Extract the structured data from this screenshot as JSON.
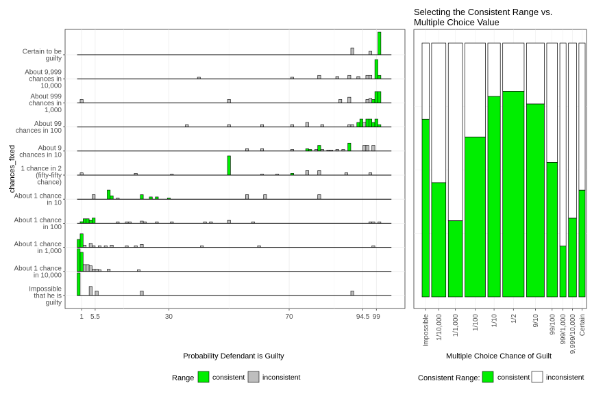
{
  "colors": {
    "consistent": "#00ee00",
    "inconsistent": "#bebebe",
    "panel_border": "#333333",
    "grid": "#ebebeb"
  },
  "chart_data": [
    {
      "type": "bar",
      "title": "",
      "xlabel": "Probability Defendant is Guilty",
      "ylabel": "chances_fixed",
      "xlim": [
        0,
        100
      ],
      "x_ticks": [
        1,
        5.5,
        30,
        70,
        94.5,
        99
      ],
      "x_tick_labels": [
        "1",
        "5.5",
        "30",
        "70",
        "94.5",
        "99"
      ],
      "categories": [
        "Impossible that he is guilty",
        "About 1 chance in 10,000",
        "About 1 chance in 1,000",
        "About 1 chance in 100",
        "About 1 chance in 10",
        "1 chance in 2 (fifty-fifty chance)",
        "About 9 chances in 10",
        "About 99 chances in 100",
        "About 999 chances in 1,000",
        "About 9,999 chances in 10,000",
        "Certain to be guilty"
      ],
      "category_label_lines": [
        [
          "Impossible",
          "that he is",
          "guilty"
        ],
        [
          "About 1 chance",
          "in 10,000"
        ],
        [
          "About 1 chance",
          "in 1,000"
        ],
        [
          "About 1 chance",
          "in 100"
        ],
        [
          "About 1 chance",
          "in 10"
        ],
        [
          "1 chance in 2",
          "(fifty-fifty",
          "chance)"
        ],
        [
          "About 9",
          "chances in 10"
        ],
        [
          "About 99",
          "chances in 100"
        ],
        [
          "About 999",
          "chances in",
          "1,000"
        ],
        [
          "About 9,999",
          "chances in",
          "10,000"
        ],
        [
          "Certain to be",
          "guilty"
        ]
      ],
      "legend": {
        "title": "Range",
        "entries": [
          "consistent",
          "inconsistent"
        ],
        "placement": "bottom"
      },
      "rows": [
        {
          "category": "Impossible that he is guilty",
          "bins": [
            {
              "x": 0,
              "h": 1.0,
              "c": "consistent"
            },
            {
              "x": 4,
              "h": 0.4,
              "c": "inconsistent"
            },
            {
              "x": 6,
              "h": 0.2,
              "c": "inconsistent"
            },
            {
              "x": 21,
              "h": 0.2,
              "c": "inconsistent"
            },
            {
              "x": 91,
              "h": 0.2,
              "c": "inconsistent"
            }
          ]
        },
        {
          "category": "About 1 chance in 10,000",
          "bins": [
            {
              "x": 0,
              "h": 1.0,
              "c": "consistent"
            },
            {
              "x": 1,
              "h": 0.85,
              "c": "consistent"
            },
            {
              "x": 2,
              "h": 0.3,
              "c": "inconsistent"
            },
            {
              "x": 3,
              "h": 0.3,
              "c": "inconsistent"
            },
            {
              "x": 4,
              "h": 0.25,
              "c": "inconsistent"
            },
            {
              "x": 5,
              "h": 0.1,
              "c": "inconsistent"
            },
            {
              "x": 6,
              "h": 0.1,
              "c": "inconsistent"
            },
            {
              "x": 7,
              "h": 0.07,
              "c": "inconsistent"
            },
            {
              "x": 10,
              "h": 0.1,
              "c": "inconsistent"
            },
            {
              "x": 20,
              "h": 0.07,
              "c": "inconsistent"
            }
          ]
        },
        {
          "category": "About 1 chance in 1,000",
          "bins": [
            {
              "x": 0,
              "h": 0.35,
              "c": "consistent"
            },
            {
              "x": 1,
              "h": 0.6,
              "c": "consistent"
            },
            {
              "x": 2,
              "h": 0.1,
              "c": "inconsistent"
            },
            {
              "x": 4,
              "h": 0.18,
              "c": "inconsistent"
            },
            {
              "x": 5,
              "h": 0.07,
              "c": "inconsistent"
            },
            {
              "x": 7,
              "h": 0.07,
              "c": "inconsistent"
            },
            {
              "x": 9,
              "h": 0.07,
              "c": "inconsistent"
            },
            {
              "x": 11,
              "h": 0.1,
              "c": "inconsistent"
            },
            {
              "x": 16,
              "h": 0.07,
              "c": "inconsistent"
            },
            {
              "x": 19,
              "h": 0.07,
              "c": "inconsistent"
            },
            {
              "x": 21,
              "h": 0.13,
              "c": "inconsistent"
            },
            {
              "x": 41,
              "h": 0.07,
              "c": "inconsistent"
            },
            {
              "x": 60,
              "h": 0.07,
              "c": "inconsistent"
            },
            {
              "x": 98,
              "h": 0.07,
              "c": "inconsistent"
            }
          ]
        },
        {
          "category": "About 1 chance in 100",
          "bins": [
            {
              "x": 1,
              "h": 0.07,
              "c": "consistent"
            },
            {
              "x": 2,
              "h": 0.2,
              "c": "consistent"
            },
            {
              "x": 3,
              "h": 0.2,
              "c": "consistent"
            },
            {
              "x": 4,
              "h": 0.13,
              "c": "consistent"
            },
            {
              "x": 5,
              "h": 0.23,
              "c": "consistent"
            },
            {
              "x": 13,
              "h": 0.06,
              "c": "inconsistent"
            },
            {
              "x": 16,
              "h": 0.06,
              "c": "inconsistent"
            },
            {
              "x": 17,
              "h": 0.06,
              "c": "inconsistent"
            },
            {
              "x": 21,
              "h": 0.1,
              "c": "inconsistent"
            },
            {
              "x": 22,
              "h": 0.06,
              "c": "inconsistent"
            },
            {
              "x": 26,
              "h": 0.06,
              "c": "inconsistent"
            },
            {
              "x": 31,
              "h": 0.06,
              "c": "inconsistent"
            },
            {
              "x": 42,
              "h": 0.06,
              "c": "inconsistent"
            },
            {
              "x": 44,
              "h": 0.06,
              "c": "inconsistent"
            },
            {
              "x": 50,
              "h": 0.13,
              "c": "inconsistent"
            },
            {
              "x": 58,
              "h": 0.06,
              "c": "inconsistent"
            },
            {
              "x": 97,
              "h": 0.06,
              "c": "inconsistent"
            },
            {
              "x": 98,
              "h": 0.06,
              "c": "inconsistent"
            },
            {
              "x": 100,
              "h": 0.06,
              "c": "inconsistent"
            }
          ]
        },
        {
          "category": "About 1 chance in 10",
          "bins": [
            {
              "x": 5,
              "h": 0.2,
              "c": "inconsistent"
            },
            {
              "x": 10,
              "h": 0.4,
              "c": "consistent"
            },
            {
              "x": 11,
              "h": 0.15,
              "c": "consistent"
            },
            {
              "x": 13,
              "h": 0.05,
              "c": "inconsistent"
            },
            {
              "x": 21,
              "h": 0.2,
              "c": "consistent"
            },
            {
              "x": 24,
              "h": 0.1,
              "c": "consistent"
            },
            {
              "x": 26,
              "h": 0.1,
              "c": "consistent"
            },
            {
              "x": 30,
              "h": 0.05,
              "c": "consistent"
            },
            {
              "x": 56,
              "h": 0.2,
              "c": "inconsistent"
            },
            {
              "x": 62,
              "h": 0.2,
              "c": "inconsistent"
            },
            {
              "x": 80,
              "h": 0.2,
              "c": "inconsistent"
            }
          ]
        },
        {
          "category": "1 chance in 2 (fifty-fifty chance)",
          "bins": [
            {
              "x": 1,
              "h": 0.1,
              "c": "inconsistent"
            },
            {
              "x": 19,
              "h": 0.08,
              "c": "inconsistent"
            },
            {
              "x": 31,
              "h": 0.04,
              "c": "inconsistent"
            },
            {
              "x": 50,
              "h": 0.85,
              "c": "consistent"
            },
            {
              "x": 61,
              "h": 0.04,
              "c": "inconsistent"
            },
            {
              "x": 66,
              "h": 0.04,
              "c": "inconsistent"
            },
            {
              "x": 71,
              "h": 0.08,
              "c": "consistent"
            },
            {
              "x": 76,
              "h": 0.2,
              "c": "inconsistent"
            },
            {
              "x": 80,
              "h": 0.2,
              "c": "inconsistent"
            },
            {
              "x": 89,
              "h": 0.1,
              "c": "inconsistent"
            },
            {
              "x": 97,
              "h": 0.1,
              "c": "inconsistent"
            }
          ]
        },
        {
          "category": "About 9 chances in 10",
          "bins": [
            {
              "x": 56,
              "h": 0.1,
              "c": "inconsistent"
            },
            {
              "x": 61,
              "h": 0.1,
              "c": "inconsistent"
            },
            {
              "x": 71,
              "h": 0.07,
              "c": "inconsistent"
            },
            {
              "x": 76,
              "h": 0.1,
              "c": "consistent"
            },
            {
              "x": 77,
              "h": 0.07,
              "c": "consistent"
            },
            {
              "x": 79,
              "h": 0.07,
              "c": "inconsistent"
            },
            {
              "x": 80,
              "h": 0.25,
              "c": "consistent"
            },
            {
              "x": 81,
              "h": 0.07,
              "c": "inconsistent"
            },
            {
              "x": 83,
              "h": 0.04,
              "c": "inconsistent"
            },
            {
              "x": 84,
              "h": 0.04,
              "c": "inconsistent"
            },
            {
              "x": 86,
              "h": 0.07,
              "c": "inconsistent"
            },
            {
              "x": 88,
              "h": 0.07,
              "c": "inconsistent"
            },
            {
              "x": 90,
              "h": 0.35,
              "c": "consistent"
            },
            {
              "x": 95,
              "h": 0.25,
              "c": "inconsistent"
            },
            {
              "x": 96,
              "h": 0.25,
              "c": "inconsistent"
            },
            {
              "x": 98,
              "h": 0.25,
              "c": "inconsistent"
            }
          ]
        },
        {
          "category": "About 99 chances in 100",
          "bins": [
            {
              "x": 36,
              "h": 0.1,
              "c": "inconsistent"
            },
            {
              "x": 50,
              "h": 0.1,
              "c": "inconsistent"
            },
            {
              "x": 61,
              "h": 0.1,
              "c": "inconsistent"
            },
            {
              "x": 71,
              "h": 0.1,
              "c": "inconsistent"
            },
            {
              "x": 76,
              "h": 0.2,
              "c": "inconsistent"
            },
            {
              "x": 81,
              "h": 0.1,
              "c": "inconsistent"
            },
            {
              "x": 90,
              "h": 0.1,
              "c": "inconsistent"
            },
            {
              "x": 91,
              "h": 0.1,
              "c": "inconsistent"
            },
            {
              "x": 93,
              "h": 0.2,
              "c": "consistent"
            },
            {
              "x": 94,
              "h": 0.35,
              "c": "consistent"
            },
            {
              "x": 95,
              "h": 0.2,
              "c": "inconsistent"
            },
            {
              "x": 96,
              "h": 0.35,
              "c": "consistent"
            },
            {
              "x": 97,
              "h": 0.35,
              "c": "consistent"
            },
            {
              "x": 98,
              "h": 0.2,
              "c": "consistent"
            },
            {
              "x": 99,
              "h": 0.35,
              "c": "consistent"
            },
            {
              "x": 100,
              "h": 0.1,
              "c": "consistent"
            }
          ]
        },
        {
          "category": "About 999 chances in 1,000",
          "bins": [
            {
              "x": 1,
              "h": 0.15,
              "c": "inconsistent"
            },
            {
              "x": 50,
              "h": 0.15,
              "c": "inconsistent"
            },
            {
              "x": 87,
              "h": 0.15,
              "c": "inconsistent"
            },
            {
              "x": 90,
              "h": 0.25,
              "c": "inconsistent"
            },
            {
              "x": 96,
              "h": 0.15,
              "c": "inconsistent"
            },
            {
              "x": 97,
              "h": 0.2,
              "c": "inconsistent"
            },
            {
              "x": 98,
              "h": 0.15,
              "c": "consistent"
            },
            {
              "x": 99,
              "h": 0.5,
              "c": "consistent"
            },
            {
              "x": 100,
              "h": 0.5,
              "c": "consistent"
            }
          ]
        },
        {
          "category": "About 9,999 chances in 10,000",
          "bins": [
            {
              "x": 40,
              "h": 0.07,
              "c": "inconsistent"
            },
            {
              "x": 71,
              "h": 0.07,
              "c": "inconsistent"
            },
            {
              "x": 80,
              "h": 0.15,
              "c": "inconsistent"
            },
            {
              "x": 86,
              "h": 0.1,
              "c": "inconsistent"
            },
            {
              "x": 90,
              "h": 0.15,
              "c": "inconsistent"
            },
            {
              "x": 93,
              "h": 0.1,
              "c": "inconsistent"
            },
            {
              "x": 96,
              "h": 0.15,
              "c": "inconsistent"
            },
            {
              "x": 97,
              "h": 0.15,
              "c": "inconsistent"
            },
            {
              "x": 99,
              "h": 0.85,
              "c": "consistent"
            },
            {
              "x": 100,
              "h": 0.15,
              "c": "consistent"
            }
          ]
        },
        {
          "category": "Certain to be guilty",
          "bins": [
            {
              "x": 91,
              "h": 0.3,
              "c": "inconsistent"
            },
            {
              "x": 97,
              "h": 0.15,
              "c": "inconsistent"
            },
            {
              "x": 100,
              "h": 1.0,
              "c": "consistent"
            }
          ]
        }
      ]
    },
    {
      "type": "bar",
      "title": "Selecting the Consistent Range vs. Multiple Choice Value",
      "title_lines": [
        "Selecting the Consistent Range vs.",
        "Multiple Choice Value"
      ],
      "xlabel": "Multiple Choice Chance of Guilt",
      "ylabel": "",
      "stacked": true,
      "legend": {
        "title": "Consistent Range:",
        "entries": [
          "consistent",
          "inconsistent"
        ],
        "placement": "bottom"
      },
      "categories": [
        "Impossible",
        "1/10,000",
        "1/1,000",
        "1/100",
        "1/10",
        "1/2",
        "9/10",
        "99/100",
        "999/1,000",
        "9,999/10,000",
        "Certain"
      ],
      "widths": [
        0.4,
        0.8,
        0.8,
        1.15,
        0.7,
        1.2,
        1.0,
        0.6,
        0.35,
        0.45,
        0.35
      ],
      "consistent_share": [
        0.7,
        0.45,
        0.3,
        0.63,
        0.79,
        0.81,
        0.76,
        0.53,
        0.2,
        0.31,
        0.42
      ]
    }
  ]
}
